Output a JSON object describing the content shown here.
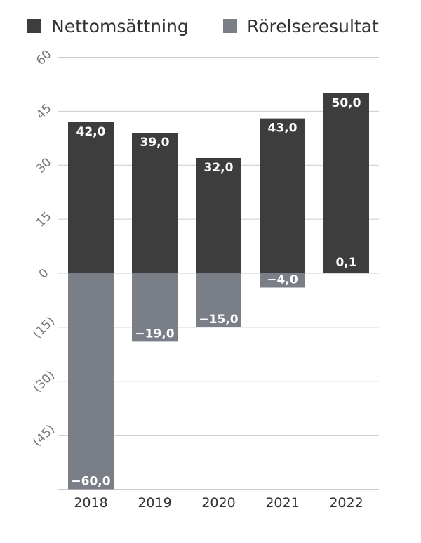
{
  "chart_data": {
    "type": "bar",
    "categories": [
      "2018",
      "2019",
      "2020",
      "2021",
      "2022"
    ],
    "series": [
      {
        "name": "Nettomsättning",
        "values": [
          42.0,
          39.0,
          32.0,
          43.0,
          50.0
        ],
        "labels": [
          "42,0",
          "39,0",
          "32,0",
          "43,0",
          "50,0"
        ],
        "color": "#3d3d3d"
      },
      {
        "name": "Rörelseresultat",
        "values": [
          -60.0,
          -19.0,
          -15.0,
          -4.0,
          0.1
        ],
        "labels": [
          "−60,0",
          "−19,0",
          "−15,0",
          "−4,0",
          "0,1"
        ],
        "color": "#7a7f87"
      }
    ],
    "yticks": [
      60,
      45,
      30,
      15,
      0,
      -15,
      -30,
      -45
    ],
    "ytick_labels": [
      "60",
      "45",
      "30",
      "15",
      "0",
      "(15)",
      "(30)",
      "(45)"
    ],
    "ylim": [
      -60,
      60
    ],
    "grid": true,
    "legend_position": "top-left",
    "title": "",
    "xlabel": "",
    "ylabel": ""
  }
}
